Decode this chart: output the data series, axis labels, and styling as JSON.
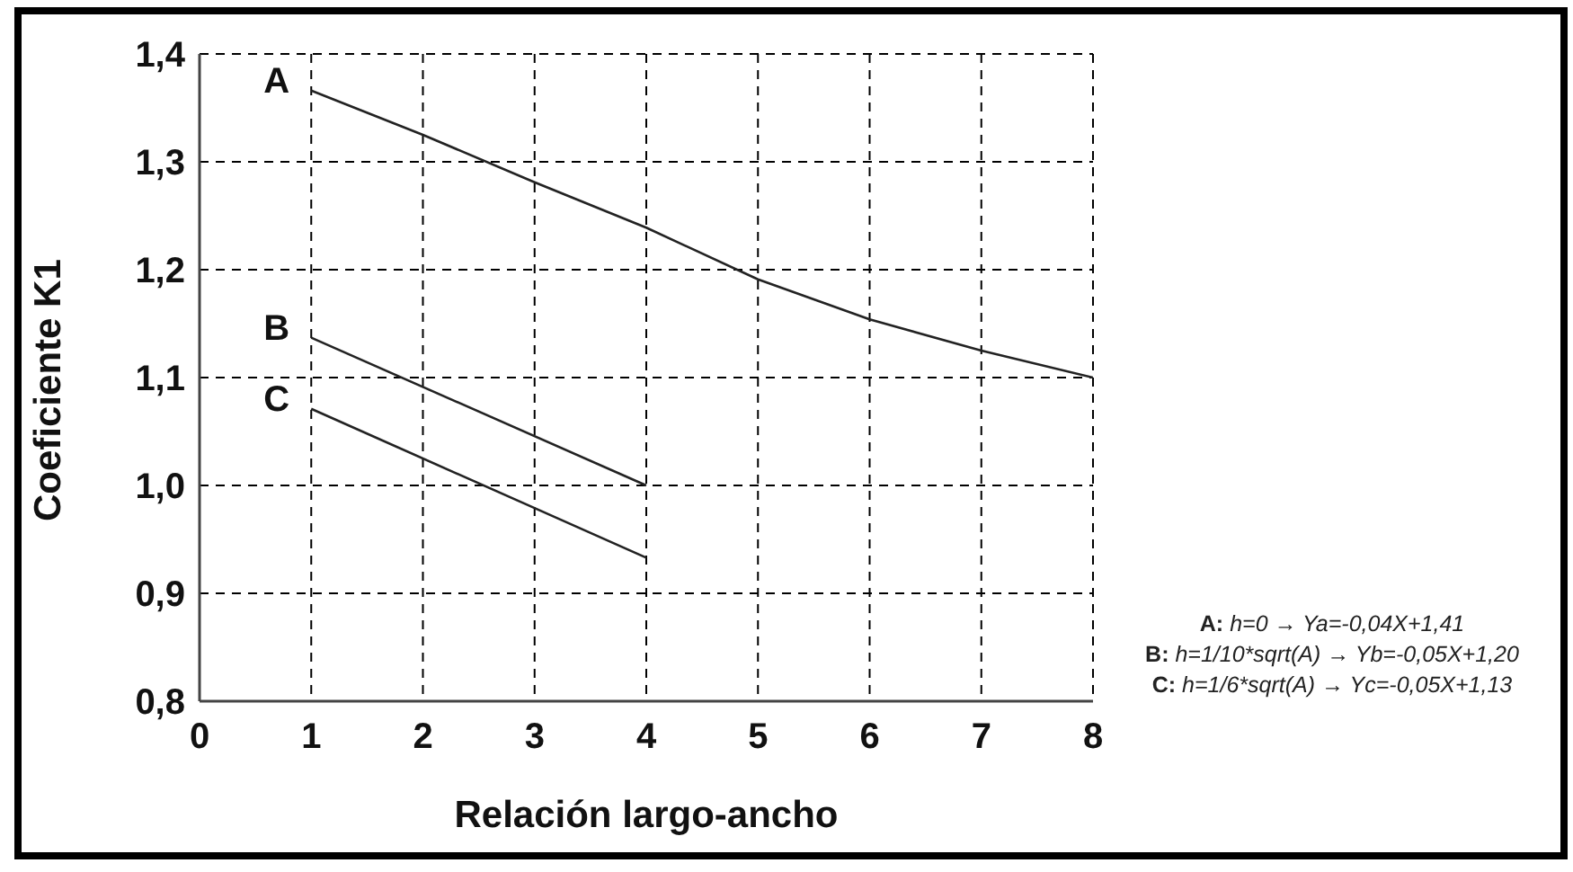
{
  "chart_data": {
    "type": "line",
    "xlabel": "Relación largo-ancho",
    "ylabel": "Coeficiente K1",
    "series": [
      {
        "name": "A",
        "color": "#222222",
        "x": [
          1,
          2,
          3,
          4,
          5,
          6,
          7,
          8
        ],
        "values": [
          1.366,
          1.325,
          1.281,
          1.239,
          1.191,
          1.154,
          1.125,
          1.1
        ]
      },
      {
        "name": "B",
        "color": "#222222",
        "x": [
          1,
          4
        ],
        "values": [
          1.137,
          1.0
        ]
      },
      {
        "name": "C",
        "color": "#222222",
        "x": [
          1,
          4
        ],
        "values": [
          1.071,
          0.933
        ]
      }
    ],
    "xlim": [
      0,
      8
    ],
    "xticks": [
      0,
      1,
      2,
      3,
      4,
      5,
      6,
      7,
      8
    ],
    "ylim": [
      0.8,
      1.4
    ],
    "yticks": [
      {
        "value": 0.8,
        "label": "0,8"
      },
      {
        "value": 0.9,
        "label": "0,9"
      },
      {
        "value": 1.0,
        "label": "1,0"
      },
      {
        "value": 1.1,
        "label": "1,1"
      },
      {
        "value": 1.2,
        "label": "1,2"
      },
      {
        "value": 1.3,
        "label": "1,3"
      },
      {
        "value": 1.4,
        "label": "1,4"
      }
    ],
    "grid": true,
    "legend": false,
    "marker": "none",
    "line_style": "solid",
    "annotations": [
      "A: h=0 → Ya=-0,04X+1,41",
      "B: h=1/10*sqrt(A) → Yb=-0,05X+1,20",
      "C: h=1/6*sqrt(A) → Yc=-0,05X+1,13"
    ]
  }
}
